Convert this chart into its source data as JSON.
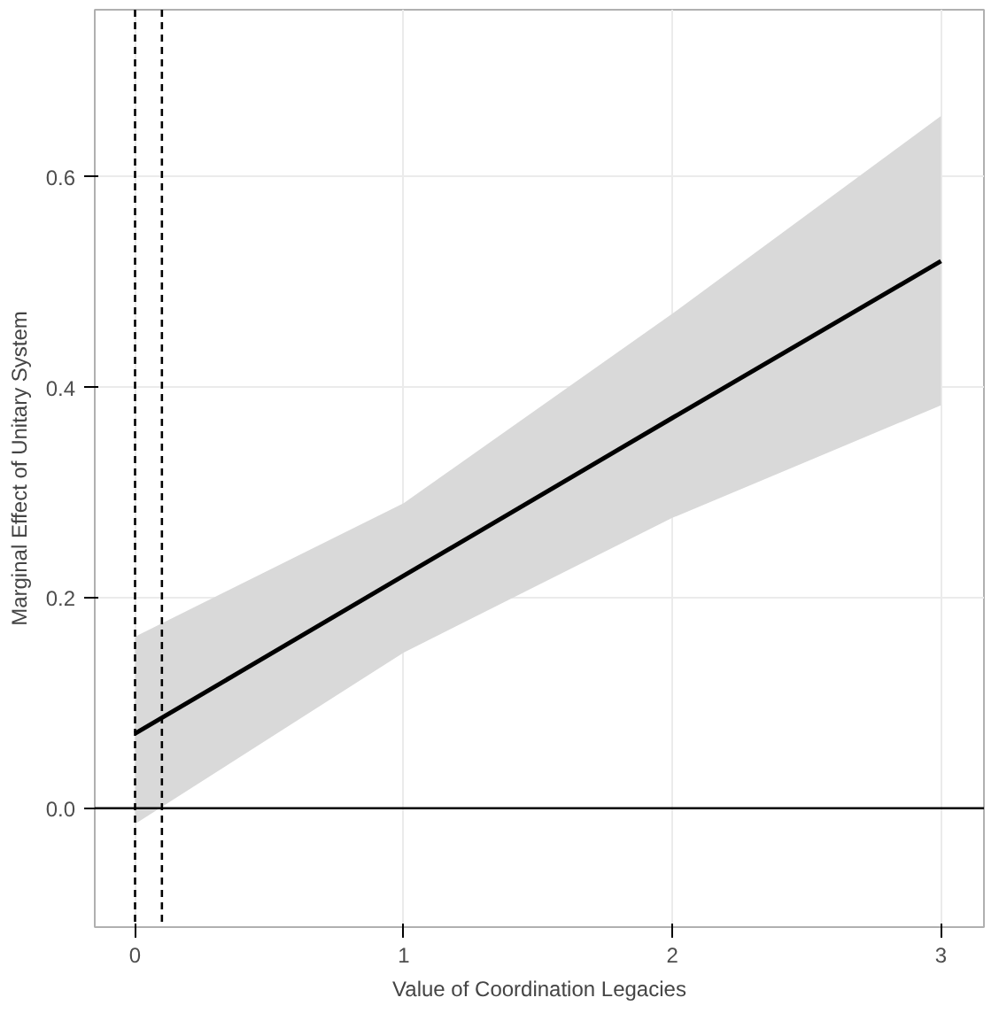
{
  "chart_data": {
    "type": "line",
    "xlabel": "Value of Coordination Legacies",
    "ylabel": "Marginal Effect of Unitary System",
    "x": [
      0,
      1,
      2,
      3
    ],
    "series": [
      {
        "color": "#000000",
        "values": [
          0.071,
          0.221,
          0.371,
          0.52
        ],
        "lower": [
          -0.015,
          0.148,
          0.276,
          0.383
        ],
        "upper": [
          0.163,
          0.29,
          0.47,
          0.658
        ]
      }
    ],
    "xlim": [
      -0.15,
      3.16
    ],
    "ylim": [
      -0.113,
      0.759
    ],
    "xticks": [
      0,
      1,
      2,
      3
    ],
    "yticks": [
      {
        "value": 0,
        "label": "0.0"
      },
      {
        "value": 0.2,
        "label": "0.2"
      },
      {
        "value": 0.4,
        "label": "0.4"
      },
      {
        "value": 0.6,
        "label": "0.6"
      }
    ],
    "grid": true,
    "ref_lines": [
      {
        "axis": "x",
        "value": 0,
        "line_style": "dashed",
        "color": "#000000"
      },
      {
        "axis": "x",
        "value": 0.1,
        "line_style": "dashed",
        "color": "#000000"
      },
      {
        "axis": "y",
        "value": 0,
        "line_style": "solid",
        "color": "#000000"
      }
    ]
  }
}
